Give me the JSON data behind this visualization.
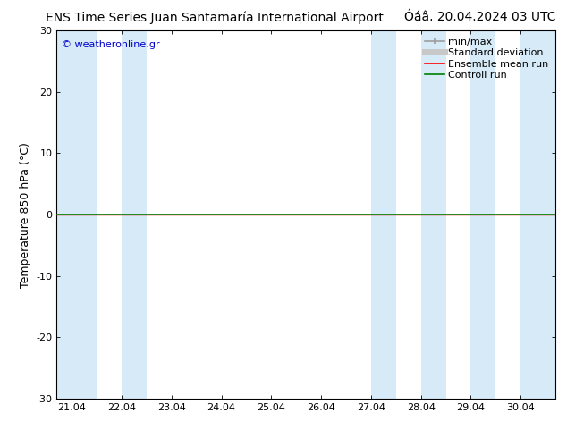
{
  "title_left": "ENS Time Series Juan Santamaría International Airport",
  "title_right": "Óáâ. 20.04.2024 03 UTC",
  "ylabel": "Temperature 850 hPa (°C)",
  "ylim": [
    -30,
    30
  ],
  "yticks": [
    -30,
    -20,
    -10,
    0,
    10,
    20,
    30
  ],
  "xlim_start": 20.7,
  "xlim_end": 30.7,
  "xtick_labels": [
    "21.04",
    "22.04",
    "23.04",
    "24.04",
    "25.04",
    "26.04",
    "27.04",
    "28.04",
    "29.04",
    "30.04"
  ],
  "xtick_positions": [
    21.0,
    22.0,
    23.0,
    24.0,
    25.0,
    26.0,
    27.0,
    28.0,
    29.0,
    30.0
  ],
  "blue_band_color": "#d6eaf8",
  "plot_bg_color": "#ffffff",
  "control_run_color": "#008000",
  "ensemble_mean_color": "#ff0000",
  "minmax_color": "#9e9e9e",
  "stddev_color": "#c8c8c8",
  "copyright_text": "© weatheronline.gr",
  "copyright_color": "#0000cc",
  "title_fontsize": 10,
  "axis_label_fontsize": 9,
  "tick_fontsize": 8,
  "legend_fontsize": 8,
  "blue_bands": [
    [
      20.7,
      21.5
    ],
    [
      22.0,
      22.5
    ],
    [
      27.0,
      27.5
    ],
    [
      28.0,
      28.5
    ],
    [
      29.0,
      29.5
    ],
    [
      30.0,
      30.7
    ]
  ],
  "control_run_y": 0.0,
  "ensemble_mean_y": 0.0,
  "figure_bg_color": "#ffffff"
}
